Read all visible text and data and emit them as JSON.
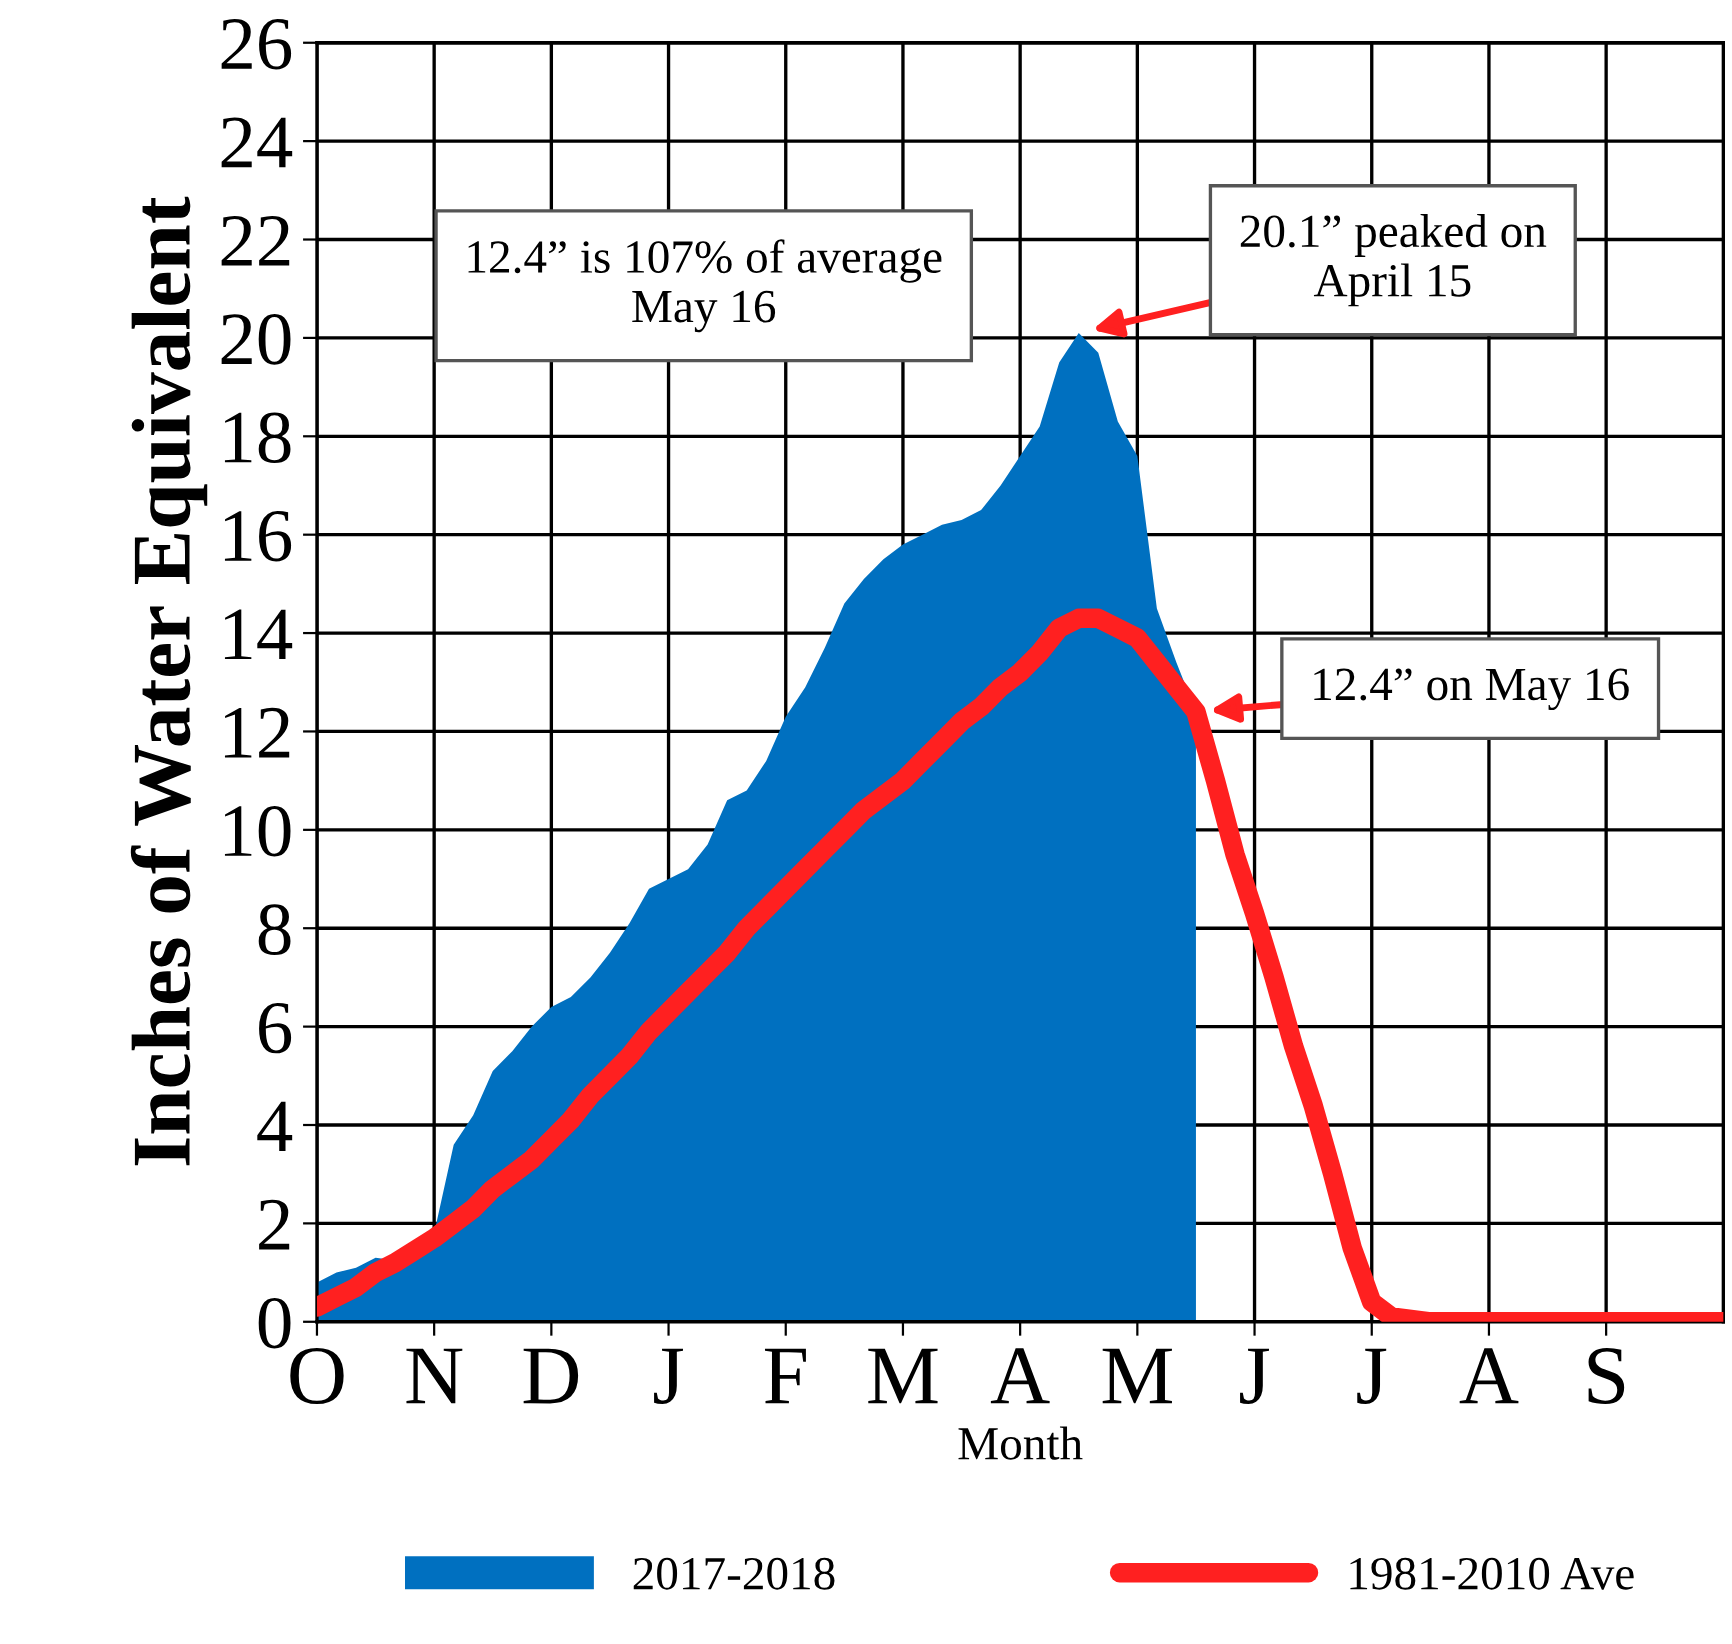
{
  "chart_data": {
    "type": "area",
    "xlabel": "Month",
    "ylabel": "Inches of Water Equivalent",
    "categories": [
      "O",
      null,
      null,
      null,
      null,
      null,
      "N",
      null,
      null,
      null,
      null,
      null,
      "D",
      null,
      null,
      null,
      null,
      null,
      "J",
      null,
      null,
      null,
      null,
      null,
      "F",
      null,
      null,
      null,
      null,
      null,
      "M",
      null,
      null,
      null,
      null,
      null,
      "A",
      null,
      null,
      null,
      null,
      null,
      "M",
      null,
      null,
      null,
      null,
      null,
      "J",
      null,
      null,
      null,
      null,
      null,
      "J",
      null,
      null,
      null,
      null,
      null,
      "A",
      null,
      null,
      null,
      null,
      null,
      "S",
      null,
      null,
      null,
      null,
      null,
      null
    ],
    "ylim": [
      0,
      26
    ],
    "yticks": [
      0,
      2,
      4,
      6,
      8,
      10,
      12,
      14,
      16,
      18,
      20,
      22,
      24,
      26
    ],
    "grid": true,
    "legend": "bottom",
    "series": [
      {
        "name": "2017-2018",
        "type": "area",
        "color": "#0070c0",
        "values": [
          0.8,
          1.0,
          1.1,
          1.3,
          1.25,
          1.4,
          1.8,
          3.6,
          4.2,
          5.1,
          5.5,
          6.0,
          6.4,
          6.6,
          7.0,
          7.5,
          8.1,
          8.8,
          9.0,
          9.2,
          9.7,
          10.6,
          10.8,
          11.4,
          12.3,
          12.9,
          13.7,
          14.6,
          15.1,
          15.5,
          15.8,
          16.0,
          16.2,
          16.3,
          16.5,
          17.0,
          17.6,
          18.2,
          19.5,
          20.1,
          19.7,
          18.3,
          17.6,
          14.5,
          13.4,
          12.4,
          null,
          null,
          null,
          null,
          null,
          null,
          null,
          null,
          null,
          null,
          null,
          null,
          null,
          null,
          null,
          null,
          null,
          null,
          null,
          null,
          null,
          null,
          null,
          null,
          null,
          null,
          null
        ]
      },
      {
        "name": "1981-2010 Ave",
        "type": "line",
        "color": "#ff2020",
        "values": [
          0.3,
          0.5,
          0.7,
          1.0,
          1.2,
          1.45,
          1.7,
          2.0,
          2.3,
          2.7,
          3.0,
          3.3,
          3.7,
          4.1,
          4.6,
          5.0,
          5.4,
          5.9,
          6.3,
          6.7,
          7.1,
          7.5,
          8.0,
          8.4,
          8.8,
          9.2,
          9.6,
          10.0,
          10.4,
          10.7,
          11.0,
          11.4,
          11.8,
          12.2,
          12.5,
          12.9,
          13.2,
          13.6,
          14.1,
          14.3,
          14.3,
          14.1,
          13.9,
          13.4,
          12.9,
          12.4,
          11.0,
          9.5,
          8.3,
          7.0,
          5.6,
          4.4,
          3.0,
          1.5,
          0.4,
          0.1,
          0.05,
          0,
          0,
          0,
          0,
          0,
          0,
          0,
          0,
          0,
          0,
          0,
          0,
          0,
          0,
          0,
          0
        ]
      }
    ],
    "annotations": [
      "12.4” is 107% of average May 16",
      "20.1” peaked on April 15",
      "12.4” on May 16"
    ]
  }
}
